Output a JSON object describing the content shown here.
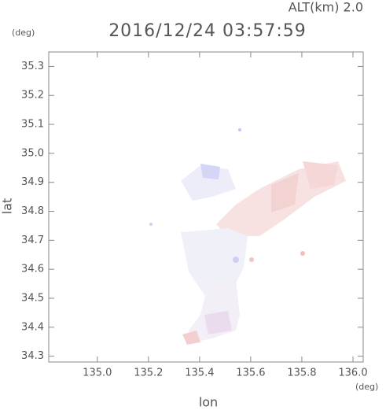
{
  "chart_data": {
    "type": "map",
    "title": "2016/12/24 03:57:59",
    "subtitle": "ALT(km) 2.0",
    "xlabel": "lon",
    "ylabel": "lat",
    "xunit": "(deg)",
    "yunit": "(deg)",
    "xlim": [
      134.81,
      136.04
    ],
    "ylim": [
      34.28,
      35.35
    ],
    "xticks": [
      {
        "value": 135.0,
        "label": "135.0"
      },
      135.2,
      135.4,
      135.6,
      135.8,
      {
        "value": 136.0,
        "label": "136.0"
      }
    ],
    "yticks": [
      34.3,
      34.4,
      34.5,
      34.6,
      34.7,
      34.8,
      34.9,
      {
        "value": 35.0,
        "label": "35.0"
      },
      35.1,
      35.2,
      35.3
    ]
  }
}
